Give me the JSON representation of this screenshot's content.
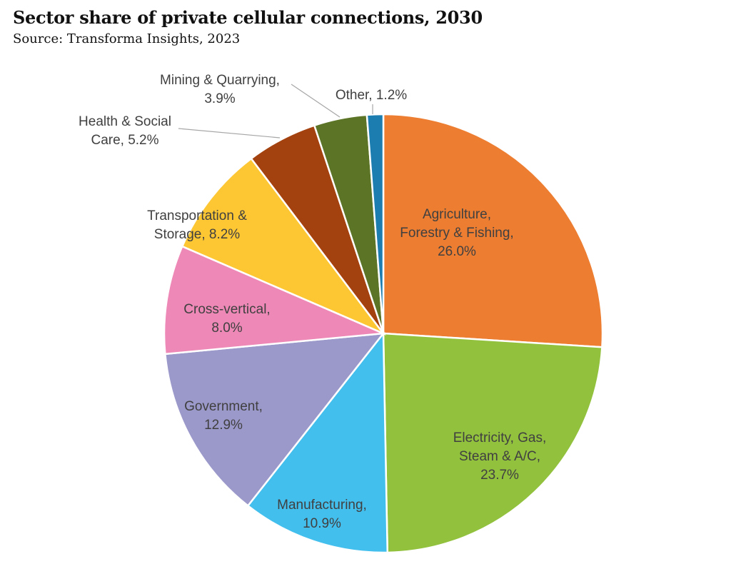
{
  "chart_data": {
    "type": "pie",
    "title": "Sector share of private cellular connections, 2030",
    "subtitle": "Source: Transforma Insights, 2023",
    "start_angle": "12 o'clock",
    "direction": "clockwise",
    "slices": [
      {
        "label": "Agriculture, Forestry & Fishing",
        "label_lines": [
          "Agriculture,",
          "Forestry & Fishing,",
          "26.0%"
        ],
        "value": 26.0,
        "color": "#ED7D31"
      },
      {
        "label": "Electricity, Gas, Steam & A/C",
        "label_lines": [
          "Electricity, Gas,",
          "Steam & A/C,",
          "23.7%"
        ],
        "value": 23.7,
        "color": "#92C13E"
      },
      {
        "label": "Manufacturing",
        "label_lines": [
          "Manufacturing,",
          "10.9%"
        ],
        "value": 10.9,
        "color": "#43BFEE"
      },
      {
        "label": "Government",
        "label_lines": [
          "Government,",
          "12.9%"
        ],
        "value": 12.9,
        "color": "#9B98CA"
      },
      {
        "label": "Cross-vertical",
        "label_lines": [
          "Cross-vertical,",
          "8.0%"
        ],
        "value": 8.0,
        "color": "#EE88B6"
      },
      {
        "label": "Transportation & Storage",
        "label_lines": [
          "Transportation &",
          "Storage, 8.2%"
        ],
        "value": 8.2,
        "color": "#FDC733"
      },
      {
        "label": "Health & Social Care",
        "label_lines": [
          "Health & Social",
          "Care, 5.2%"
        ],
        "value": 5.2,
        "color": "#A4420F"
      },
      {
        "label": "Mining & Quarrying",
        "label_lines": [
          "Mining & Quarrying,",
          "3.9%"
        ],
        "value": 3.9,
        "color": "#5B7426"
      },
      {
        "label": "Other",
        "label_lines": [
          "Other, 1.2%"
        ],
        "value": 1.2,
        "color": "#1B7DB0"
      }
    ]
  }
}
